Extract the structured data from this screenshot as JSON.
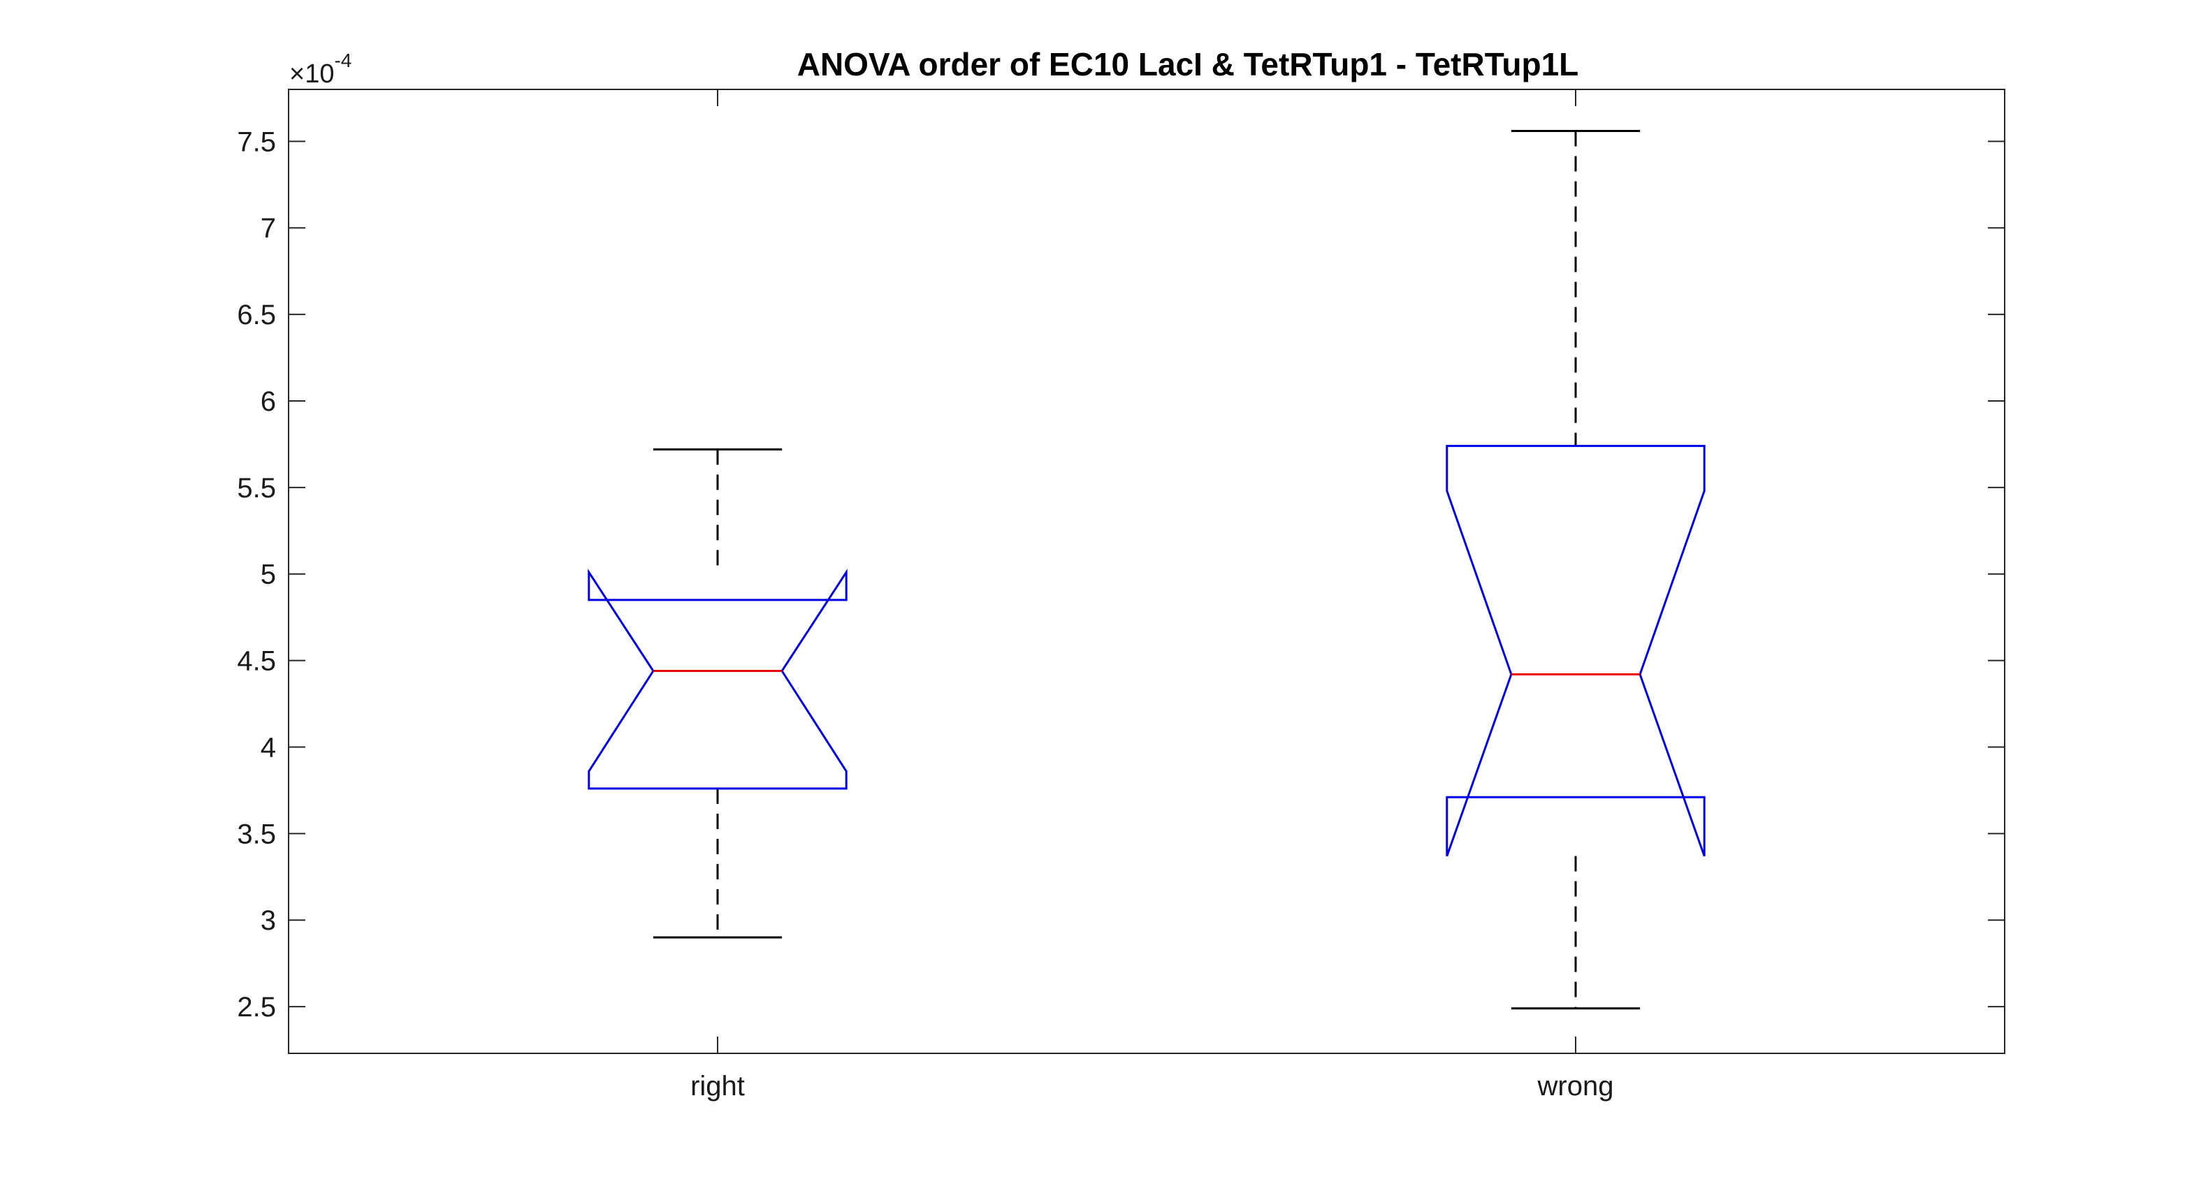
{
  "chart_data": {
    "type": "box",
    "title": "ANOVA order of EC10 LacI & TetRTup1 - TetRTup1L",
    "xlabel": "",
    "ylabel": "",
    "y_multiplier": {
      "base": "×10",
      "exponent": "-4",
      "factor": 0.0001
    },
    "ylim": [
      2.23,
      7.8
    ],
    "yticks": [
      2.5,
      3,
      3.5,
      4,
      4.5,
      5,
      5.5,
      6,
      6.5,
      7,
      7.5
    ],
    "ytick_labels": [
      "2.5",
      "3",
      "3.5",
      "4",
      "4.5",
      "5",
      "5.5",
      "6",
      "6.5",
      "7",
      "7.5"
    ],
    "categories": [
      "right",
      "wrong"
    ],
    "notched": true,
    "grid": false,
    "boxes": [
      {
        "label": "right",
        "whisker_low": 2.9,
        "q1": 3.76,
        "notch_low": 3.86,
        "median": 4.44,
        "notch_high": 5.01,
        "q3": 4.85,
        "whisker_high": 5.72
      },
      {
        "label": "wrong",
        "whisker_low": 2.49,
        "q1": 3.71,
        "notch_low": 3.37,
        "median": 4.42,
        "notch_high": 5.48,
        "q3": 5.74,
        "whisker_high": 7.56
      }
    ],
    "colors": {
      "box": "#0000e6",
      "median": "#e60000",
      "whisker": "#000000",
      "axes": "#262626"
    }
  }
}
